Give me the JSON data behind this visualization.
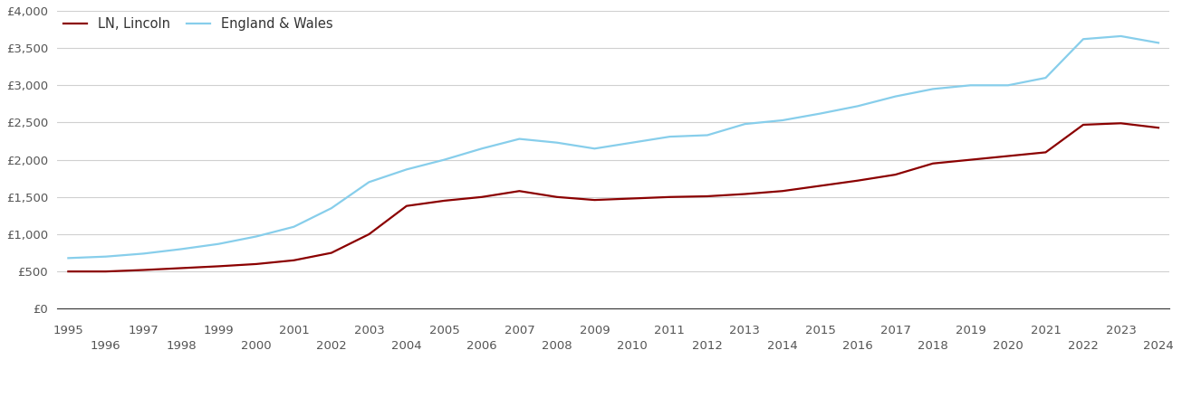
{
  "lincoln_color": "#8B0000",
  "england_wales_color": "#87CEEB",
  "lincoln_label": "LN, Lincoln",
  "england_wales_label": "England & Wales",
  "years": [
    1995,
    1996,
    1997,
    1998,
    1999,
    2000,
    2001,
    2002,
    2003,
    2004,
    2005,
    2006,
    2007,
    2008,
    2009,
    2010,
    2011,
    2012,
    2013,
    2014,
    2015,
    2016,
    2017,
    2018,
    2019,
    2020,
    2021,
    2022,
    2023,
    2024
  ],
  "lincoln_values": [
    500,
    500,
    520,
    545,
    570,
    600,
    650,
    750,
    1000,
    1380,
    1450,
    1500,
    1580,
    1500,
    1460,
    1480,
    1500,
    1510,
    1540,
    1580,
    1650,
    1720,
    1800,
    1950,
    2000,
    2050,
    2100,
    2470,
    2490,
    2430
  ],
  "england_wales_values": [
    680,
    700,
    740,
    800,
    870,
    970,
    1100,
    1350,
    1700,
    1870,
    2000,
    2150,
    2280,
    2230,
    2150,
    2230,
    2310,
    2330,
    2480,
    2530,
    2620,
    2720,
    2850,
    2950,
    3000,
    3000,
    3100,
    3620,
    3660,
    3570
  ],
  "ylim": [
    0,
    4000
  ],
  "yticks": [
    0,
    500,
    1000,
    1500,
    2000,
    2500,
    3000,
    3500,
    4000
  ],
  "ytick_labels": [
    "£0",
    "£500",
    "£1,000",
    "£1,500",
    "£2,000",
    "£2,500",
    "£3,000",
    "£3,500",
    "£4,000"
  ],
  "background_color": "#ffffff",
  "grid_color": "#d0d0d0",
  "line_width": 1.6,
  "legend_fontsize": 10.5,
  "tick_fontsize": 9.5
}
